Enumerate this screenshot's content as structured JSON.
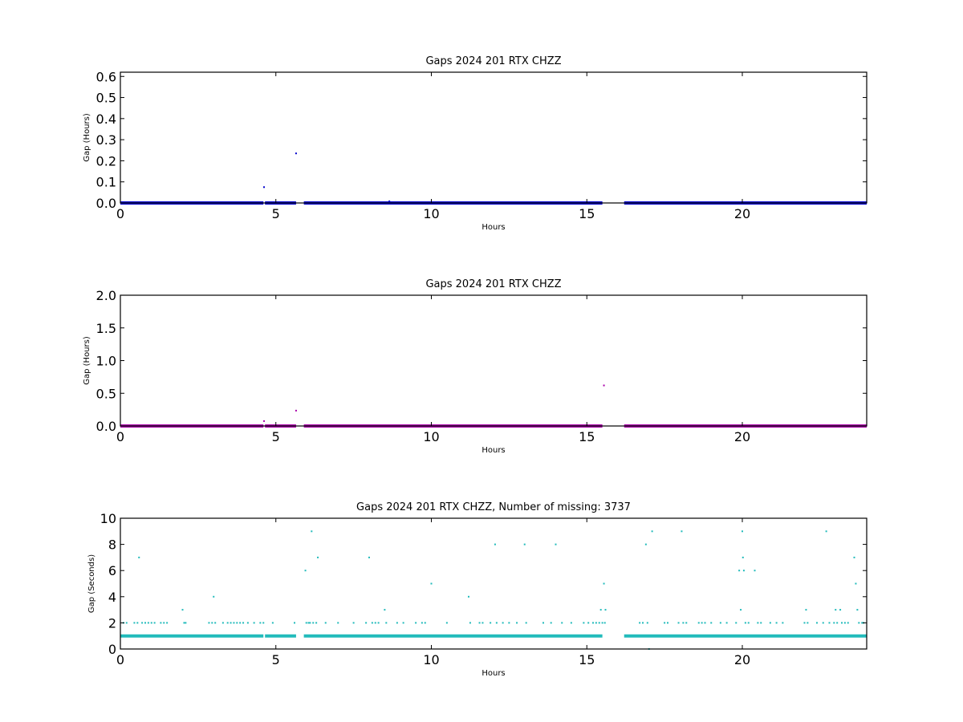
{
  "chart_data": [
    {
      "type": "scatter",
      "title": "Gaps 2024 201 RTX  CHZZ",
      "xlabel": "Hours",
      "ylabel": "Gap (Hours)",
      "xlim": [
        0,
        24
      ],
      "ylim": [
        0,
        0.62
      ],
      "xticks": [
        0,
        5,
        10,
        15,
        20
      ],
      "yticks": [
        0.0,
        0.1,
        0.2,
        0.3,
        0.4,
        0.5,
        0.6
      ],
      "ytick_labels": [
        "0.0",
        "0.1",
        "0.2",
        "0.3",
        "0.4",
        "0.5",
        "0.6"
      ],
      "grid": false,
      "color": "#0000cc",
      "baseline_segments": [
        [
          0,
          4.6
        ],
        [
          4.65,
          5.65
        ],
        [
          5.9,
          15.5
        ],
        [
          16.2,
          24
        ]
      ],
      "baseline_value": 0.0,
      "points": [
        {
          "x": 4.62,
          "y": 0.075
        },
        {
          "x": 5.65,
          "y": 0.235
        },
        {
          "x": 8.65,
          "y": 0.008
        }
      ]
    },
    {
      "type": "scatter",
      "title": "Gaps 2024 201 RTX  CHZZ",
      "xlabel": "Hours",
      "ylabel": "Gap (Hours)",
      "xlim": [
        0,
        24
      ],
      "ylim": [
        0,
        2.0
      ],
      "xticks": [
        0,
        5,
        10,
        15,
        20
      ],
      "yticks": [
        0.0,
        0.5,
        1.0,
        1.5,
        2.0
      ],
      "ytick_labels": [
        "0.0",
        "0.5",
        "1.0",
        "1.5",
        "2.0"
      ],
      "grid": false,
      "color": "#aa00aa",
      "baseline_segments": [
        [
          0,
          4.6
        ],
        [
          4.65,
          5.65
        ],
        [
          5.9,
          15.5
        ],
        [
          16.2,
          24
        ]
      ],
      "baseline_value": 0.0,
      "points": [
        {
          "x": 4.62,
          "y": 0.075
        },
        {
          "x": 5.65,
          "y": 0.235
        },
        {
          "x": 15.55,
          "y": 0.62
        }
      ]
    },
    {
      "type": "scatter",
      "title": "Gaps 2024 201 RTX  CHZZ, Number of missing: 3737",
      "xlabel": "Hours",
      "ylabel": "Gap (Seconds)",
      "xlim": [
        0,
        24
      ],
      "ylim": [
        0,
        10
      ],
      "xticks": [
        0,
        5,
        10,
        15,
        20
      ],
      "yticks": [
        0,
        2,
        4,
        6,
        8,
        10
      ],
      "ytick_labels": [
        "0",
        "2",
        "4",
        "6",
        "8",
        "10"
      ],
      "grid": false,
      "color": "#22bbbb",
      "baseline_segments": [
        [
          0,
          4.6
        ],
        [
          4.65,
          5.65
        ],
        [
          5.9,
          15.5
        ],
        [
          16.2,
          24
        ]
      ],
      "baseline_value": 1,
      "points": [
        {
          "x": 0.1,
          "y": 2
        },
        {
          "x": 0.2,
          "y": 2
        },
        {
          "x": 0.45,
          "y": 2
        },
        {
          "x": 0.55,
          "y": 2
        },
        {
          "x": 0.6,
          "y": 7
        },
        {
          "x": 0.7,
          "y": 2
        },
        {
          "x": 0.8,
          "y": 2
        },
        {
          "x": 0.9,
          "y": 2
        },
        {
          "x": 1.0,
          "y": 2
        },
        {
          "x": 1.1,
          "y": 2
        },
        {
          "x": 1.3,
          "y": 2
        },
        {
          "x": 1.4,
          "y": 2
        },
        {
          "x": 1.5,
          "y": 2
        },
        {
          "x": 2.0,
          "y": 3
        },
        {
          "x": 2.05,
          "y": 2
        },
        {
          "x": 2.1,
          "y": 2
        },
        {
          "x": 2.85,
          "y": 2
        },
        {
          "x": 2.95,
          "y": 2
        },
        {
          "x": 3.0,
          "y": 4
        },
        {
          "x": 3.05,
          "y": 2
        },
        {
          "x": 3.3,
          "y": 2
        },
        {
          "x": 3.45,
          "y": 2
        },
        {
          "x": 3.55,
          "y": 2
        },
        {
          "x": 3.65,
          "y": 2
        },
        {
          "x": 3.75,
          "y": 2
        },
        {
          "x": 3.85,
          "y": 2
        },
        {
          "x": 3.95,
          "y": 2
        },
        {
          "x": 4.1,
          "y": 2
        },
        {
          "x": 4.3,
          "y": 2
        },
        {
          "x": 4.5,
          "y": 2
        },
        {
          "x": 4.6,
          "y": 2
        },
        {
          "x": 4.9,
          "y": 2
        },
        {
          "x": 5.6,
          "y": 2
        },
        {
          "x": 5.95,
          "y": 6
        },
        {
          "x": 5.98,
          "y": 2
        },
        {
          "x": 6.05,
          "y": 2
        },
        {
          "x": 6.1,
          "y": 2
        },
        {
          "x": 6.15,
          "y": 9
        },
        {
          "x": 6.2,
          "y": 2
        },
        {
          "x": 6.3,
          "y": 2
        },
        {
          "x": 6.35,
          "y": 7
        },
        {
          "x": 6.6,
          "y": 2
        },
        {
          "x": 7.0,
          "y": 2
        },
        {
          "x": 7.5,
          "y": 2
        },
        {
          "x": 7.9,
          "y": 2
        },
        {
          "x": 8.0,
          "y": 7
        },
        {
          "x": 8.1,
          "y": 2
        },
        {
          "x": 8.2,
          "y": 2
        },
        {
          "x": 8.3,
          "y": 2
        },
        {
          "x": 8.5,
          "y": 3
        },
        {
          "x": 8.55,
          "y": 2
        },
        {
          "x": 8.9,
          "y": 2
        },
        {
          "x": 9.1,
          "y": 2
        },
        {
          "x": 9.5,
          "y": 2
        },
        {
          "x": 9.7,
          "y": 2
        },
        {
          "x": 9.8,
          "y": 2
        },
        {
          "x": 10.0,
          "y": 5
        },
        {
          "x": 10.5,
          "y": 2
        },
        {
          "x": 11.2,
          "y": 4
        },
        {
          "x": 11.25,
          "y": 2
        },
        {
          "x": 11.55,
          "y": 2
        },
        {
          "x": 11.65,
          "y": 2
        },
        {
          "x": 11.9,
          "y": 2
        },
        {
          "x": 12.05,
          "y": 8
        },
        {
          "x": 12.1,
          "y": 2
        },
        {
          "x": 12.3,
          "y": 2
        },
        {
          "x": 12.5,
          "y": 2
        },
        {
          "x": 12.75,
          "y": 2
        },
        {
          "x": 13.0,
          "y": 8
        },
        {
          "x": 13.05,
          "y": 2
        },
        {
          "x": 13.6,
          "y": 2
        },
        {
          "x": 13.85,
          "y": 2
        },
        {
          "x": 14.0,
          "y": 8
        },
        {
          "x": 14.2,
          "y": 2
        },
        {
          "x": 14.5,
          "y": 2
        },
        {
          "x": 14.9,
          "y": 2
        },
        {
          "x": 15.05,
          "y": 2
        },
        {
          "x": 15.2,
          "y": 2
        },
        {
          "x": 15.3,
          "y": 2
        },
        {
          "x": 15.4,
          "y": 2
        },
        {
          "x": 15.45,
          "y": 3
        },
        {
          "x": 15.5,
          "y": 2
        },
        {
          "x": 15.55,
          "y": 5
        },
        {
          "x": 15.58,
          "y": 2
        },
        {
          "x": 15.6,
          "y": 3
        },
        {
          "x": 16.7,
          "y": 2
        },
        {
          "x": 16.8,
          "y": 2
        },
        {
          "x": 16.9,
          "y": 8
        },
        {
          "x": 16.95,
          "y": 2
        },
        {
          "x": 17.0,
          "y": 0
        },
        {
          "x": 17.1,
          "y": 9
        },
        {
          "x": 17.5,
          "y": 2
        },
        {
          "x": 17.6,
          "y": 2
        },
        {
          "x": 17.95,
          "y": 2
        },
        {
          "x": 18.05,
          "y": 9
        },
        {
          "x": 18.1,
          "y": 2
        },
        {
          "x": 18.2,
          "y": 2
        },
        {
          "x": 18.6,
          "y": 2
        },
        {
          "x": 18.7,
          "y": 2
        },
        {
          "x": 18.8,
          "y": 2
        },
        {
          "x": 19.0,
          "y": 2
        },
        {
          "x": 19.3,
          "y": 2
        },
        {
          "x": 19.5,
          "y": 2
        },
        {
          "x": 19.8,
          "y": 2
        },
        {
          "x": 19.9,
          "y": 6
        },
        {
          "x": 19.95,
          "y": 3
        },
        {
          "x": 20.0,
          "y": 9
        },
        {
          "x": 20.02,
          "y": 7
        },
        {
          "x": 20.05,
          "y": 6
        },
        {
          "x": 20.1,
          "y": 2
        },
        {
          "x": 20.2,
          "y": 2
        },
        {
          "x": 20.4,
          "y": 6
        },
        {
          "x": 20.5,
          "y": 2
        },
        {
          "x": 20.6,
          "y": 2
        },
        {
          "x": 20.9,
          "y": 2
        },
        {
          "x": 21.1,
          "y": 2
        },
        {
          "x": 21.3,
          "y": 2
        },
        {
          "x": 22.0,
          "y": 2
        },
        {
          "x": 22.05,
          "y": 3
        },
        {
          "x": 22.1,
          "y": 2
        },
        {
          "x": 22.4,
          "y": 2
        },
        {
          "x": 22.6,
          "y": 2
        },
        {
          "x": 22.7,
          "y": 9
        },
        {
          "x": 22.8,
          "y": 2
        },
        {
          "x": 22.95,
          "y": 2
        },
        {
          "x": 23.0,
          "y": 3
        },
        {
          "x": 23.05,
          "y": 2
        },
        {
          "x": 23.15,
          "y": 3
        },
        {
          "x": 23.2,
          "y": 2
        },
        {
          "x": 23.3,
          "y": 2
        },
        {
          "x": 23.4,
          "y": 2
        },
        {
          "x": 23.6,
          "y": 7
        },
        {
          "x": 23.65,
          "y": 5
        },
        {
          "x": 23.7,
          "y": 3
        },
        {
          "x": 23.75,
          "y": 2
        },
        {
          "x": 23.85,
          "y": 2
        },
        {
          "x": 23.9,
          "y": 2
        }
      ]
    }
  ]
}
